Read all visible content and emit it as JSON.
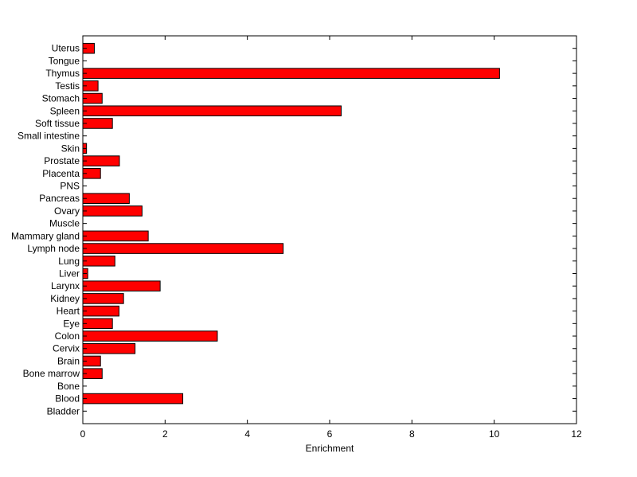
{
  "chart_data": {
    "type": "bar",
    "orientation": "horizontal",
    "title": "",
    "xlabel": "Enrichment",
    "ylabel": "",
    "xlim": [
      0,
      12
    ],
    "xticks": [
      0,
      2,
      4,
      6,
      8,
      10,
      12
    ],
    "grid": false,
    "bar_color": "#ff0000",
    "categories": [
      "Bladder",
      "Blood",
      "Bone",
      "Bone marrow",
      "Brain",
      "Cervix",
      "Colon",
      "Eye",
      "Heart",
      "Kidney",
      "Larynx",
      "Liver",
      "Lung",
      "Lymph node",
      "Mammary gland",
      "Muscle",
      "Ovary",
      "Pancreas",
      "PNS",
      "Placenta",
      "Prostate",
      "Skin",
      "Small intestine",
      "Soft tissue",
      "Spleen",
      "Stomach",
      "Testis",
      "Thymus",
      "Tongue",
      "Uterus"
    ],
    "values": [
      0,
      2.43,
      0,
      0.47,
      0.43,
      1.27,
      3.27,
      0.72,
      0.88,
      0.99,
      1.88,
      0.12,
      0.78,
      4.87,
      1.59,
      0,
      1.44,
      1.13,
      0,
      0.43,
      0.89,
      0.09,
      0,
      0.72,
      6.28,
      0.47,
      0.37,
      10.13,
      0,
      0.28
    ]
  }
}
